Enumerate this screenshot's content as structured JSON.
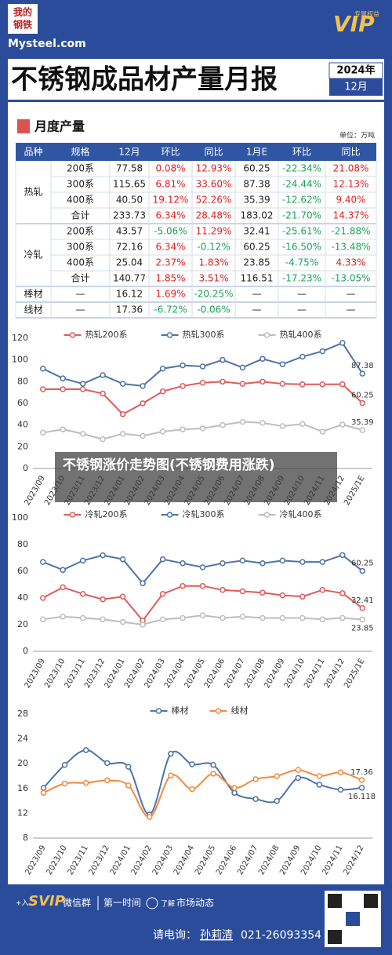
{
  "header": {
    "logo": [
      "我的",
      "钢铁"
    ],
    "site": "Mysteel.com",
    "badge": "VIP",
    "badge_note": "专属权益"
  },
  "report": {
    "title": "不锈钢成品材产量月报",
    "year": "2024年",
    "month": "12月"
  },
  "section": {
    "title": "月度产量",
    "unit": "单位：万吨"
  },
  "table": {
    "header": [
      "品种",
      "规格",
      "12月",
      "环比",
      "同比",
      "1月E",
      "环比",
      "同比"
    ],
    "groups": [
      {
        "name": "热轧",
        "rows": [
          [
            "200系",
            "77.58",
            "0.08%",
            "12.93%",
            "60.25",
            "-22.34%",
            "21.08%"
          ],
          [
            "300系",
            "115.65",
            "6.81%",
            "33.60%",
            "87.38",
            "-24.44%",
            "12.13%"
          ],
          [
            "400系",
            "40.50",
            "19.12%",
            "52.26%",
            "35.39",
            "-12.62%",
            "9.40%"
          ],
          [
            "合计",
            "233.73",
            "6.34%",
            "28.48%",
            "183.02",
            "-21.70%",
            "14.37%"
          ]
        ]
      },
      {
        "name": "冷轧",
        "rows": [
          [
            "200系",
            "43.57",
            "-5.06%",
            "11.29%",
            "32.41",
            "-25.61%",
            "-21.88%"
          ],
          [
            "300系",
            "72.16",
            "6.34%",
            "-0.12%",
            "60.25",
            "-16.50%",
            "-13.48%"
          ],
          [
            "400系",
            "25.04",
            "2.37%",
            "1.83%",
            "23.85",
            "-4.75%",
            "4.33%"
          ],
          [
            "合计",
            "140.77",
            "1.85%",
            "3.51%",
            "116.51",
            "-17.23%",
            "-13.05%"
          ]
        ]
      },
      {
        "name": "棒材",
        "rows": [
          [
            "—",
            "16.12",
            "1.69%",
            "-20.25%",
            "—",
            "—",
            "—"
          ]
        ]
      },
      {
        "name": "线材",
        "rows": [
          [
            "—",
            "17.36",
            "-6.72%",
            "-0.06%",
            "—",
            "—",
            "—"
          ]
        ]
      }
    ]
  },
  "chart_data": [
    {
      "type": "line",
      "smooth": false,
      "categories": [
        "2023/09",
        "2023/10",
        "2023/11",
        "2023/12",
        "2024/01",
        "2024/02",
        "2024/03",
        "2024/04",
        "2024/05",
        "2024/06",
        "2024/07",
        "2024/08",
        "2024/09",
        "2024/10",
        "2024/11",
        "2024/12",
        "2025/1E"
      ],
      "ylim": [
        0,
        120
      ],
      "yticks": [
        0,
        20,
        40,
        60,
        80,
        100,
        120
      ],
      "series": [
        {
          "name": "热轧200系",
          "color": "#e05a5a",
          "values": [
            73,
            73,
            73,
            69,
            50,
            60,
            71,
            76,
            79,
            80,
            78,
            80,
            78,
            77.5,
            77.5,
            77.58,
            60.25
          ]
        },
        {
          "name": "热轧300系",
          "color": "#4e73a8",
          "values": [
            92,
            83,
            78,
            86,
            78,
            76,
            92,
            95,
            94,
            100,
            93,
            101,
            96,
            103,
            108,
            115.65,
            87.38
          ]
        },
        {
          "name": "热轧400系",
          "color": "#bdbdbd",
          "values": [
            33,
            36,
            32,
            27,
            32,
            30,
            34,
            36,
            37,
            40,
            43,
            42,
            39,
            41,
            34,
            40.5,
            35.39
          ]
        }
      ]
    },
    {
      "type": "line",
      "smooth": false,
      "categories": [
        "2023/09",
        "2023/10",
        "2023/11",
        "2023/12",
        "2024/01",
        "2024/02",
        "2024/03",
        "2024/04",
        "2024/05",
        "2024/06",
        "2024/07",
        "2024/08",
        "2024/09",
        "2024/10",
        "2024/11",
        "2024/12",
        "2025/1E"
      ],
      "ylim": [
        0,
        100
      ],
      "yticks": [
        0,
        20,
        40,
        60,
        80,
        100
      ],
      "series": [
        {
          "name": "冷轧200系",
          "color": "#e05a5a",
          "values": [
            40,
            48,
            43,
            39,
            41,
            23,
            43,
            49,
            49,
            46,
            45,
            44,
            42,
            41,
            46,
            43.57,
            32.41
          ]
        },
        {
          "name": "冷轧300系",
          "color": "#4e73a8",
          "values": [
            67,
            61,
            68,
            72,
            69,
            51,
            69,
            66,
            63,
            66,
            68,
            66,
            68,
            67,
            67,
            72.16,
            60.25
          ]
        },
        {
          "name": "冷轧400系",
          "color": "#bdbdbd",
          "values": [
            24,
            26,
            25,
            24,
            22,
            20,
            24,
            25,
            27,
            25,
            26,
            25,
            25,
            25,
            24,
            25.04,
            23.85
          ]
        }
      ]
    },
    {
      "type": "line",
      "smooth": true,
      "categories": [
        "2023/09",
        "2023/10",
        "2023/11",
        "2023/12",
        "2024/01",
        "2024/02",
        "2024/03",
        "2024/04",
        "2024/05",
        "2024/06",
        "2024/07",
        "2024/08",
        "2024/09",
        "2024/10",
        "2024/11",
        "2024/12"
      ],
      "ylim": [
        8,
        28
      ],
      "yticks": [
        8,
        12,
        16,
        20,
        24,
        28
      ],
      "series": [
        {
          "name": "棒材",
          "color": "#4e73a8",
          "values": [
            16.1,
            19.8,
            22.2,
            20.1,
            19.5,
            11.8,
            21.6,
            19.9,
            19.8,
            15.3,
            14.3,
            14.0,
            17.7,
            16.6,
            15.8,
            16.118
          ]
        },
        {
          "name": "线材",
          "color": "#f08a3e",
          "values": [
            15.3,
            16.8,
            16.9,
            17.3,
            16.5,
            11.4,
            18.1,
            15.9,
            18.4,
            16.1,
            17.5,
            18.0,
            19.0,
            18.0,
            18.6,
            17.36
          ]
        }
      ]
    }
  ],
  "watermark": "不锈钢涨价走势图(不锈钢费用涨跌)",
  "footer": {
    "promo": [
      "+入",
      "SVIP",
      "微信群",
      "第一时间",
      "了解",
      "市场动态"
    ],
    "contact_label": "请电询：",
    "contact_name": "孙莉清",
    "phone": "021-26093354"
  }
}
